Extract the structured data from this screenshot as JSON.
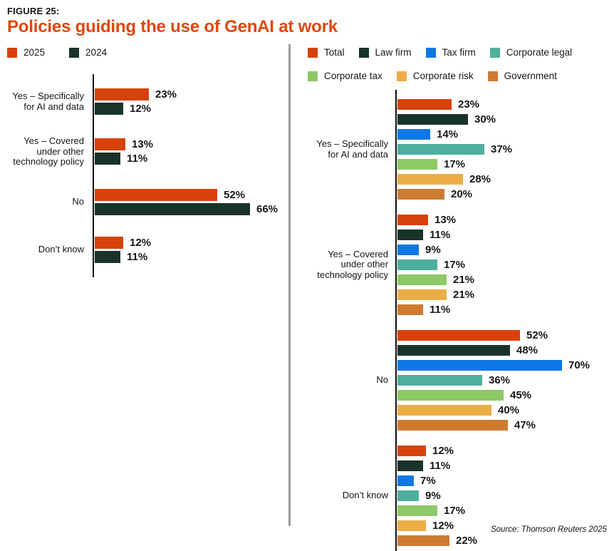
{
  "header": {
    "figure_label": "FIGURE 25:",
    "title": "Policies guiding the use of GenAI at work"
  },
  "source": "Source: Thomson Reuters 2025",
  "colors": {
    "orange": "#D7420A",
    "dark_green": "#1A3329",
    "blue": "#0D78E4",
    "teal": "#4DAF9C",
    "light_green": "#8DC966",
    "amber": "#ECAD47",
    "brown": "#CE7B32",
    "title_orange": "#E04709",
    "divider_gray": "#9B9B9B"
  },
  "chart_data": [
    {
      "type": "bar",
      "orientation": "horizontal",
      "title": "Policies guiding the use of GenAI at work — year comparison",
      "categories": [
        "Yes – Specifically for AI and data",
        "Yes – Covered under other technology policy",
        "No",
        "Don’t know"
      ],
      "series": [
        {
          "name": "2025",
          "color": "#D7420A",
          "values": [
            23,
            13,
            52,
            12
          ]
        },
        {
          "name": "2024",
          "color": "#1A3329",
          "values": [
            12,
            11,
            66,
            11
          ]
        }
      ],
      "value_suffix": "%",
      "xlim": [
        0,
        100
      ],
      "grid": false,
      "legend_position": "top"
    },
    {
      "type": "bar",
      "orientation": "horizontal",
      "title": "Policies guiding the use of GenAI at work — by segment",
      "categories": [
        "Yes – Specifically for AI and data",
        "Yes – Covered under other technology policy",
        "No",
        "Don’t know"
      ],
      "series": [
        {
          "name": "Total",
          "color": "#D7420A",
          "values": [
            23,
            13,
            52,
            12
          ]
        },
        {
          "name": "Law firm",
          "color": "#1A3329",
          "values": [
            30,
            11,
            48,
            11
          ]
        },
        {
          "name": "Tax firm",
          "color": "#0D78E4",
          "values": [
            14,
            9,
            70,
            7
          ]
        },
        {
          "name": "Corporate legal",
          "color": "#4DAF9C",
          "values": [
            37,
            17,
            36,
            9
          ]
        },
        {
          "name": "Corporate tax",
          "color": "#8DC966",
          "values": [
            17,
            21,
            45,
            17
          ]
        },
        {
          "name": "Corporate risk",
          "color": "#ECAD47",
          "values": [
            28,
            21,
            40,
            12
          ]
        },
        {
          "name": "Government",
          "color": "#CE7B32",
          "values": [
            20,
            11,
            47,
            22
          ]
        }
      ],
      "value_suffix": "%",
      "xlim": [
        0,
        100
      ],
      "grid": false,
      "legend_position": "top"
    }
  ]
}
